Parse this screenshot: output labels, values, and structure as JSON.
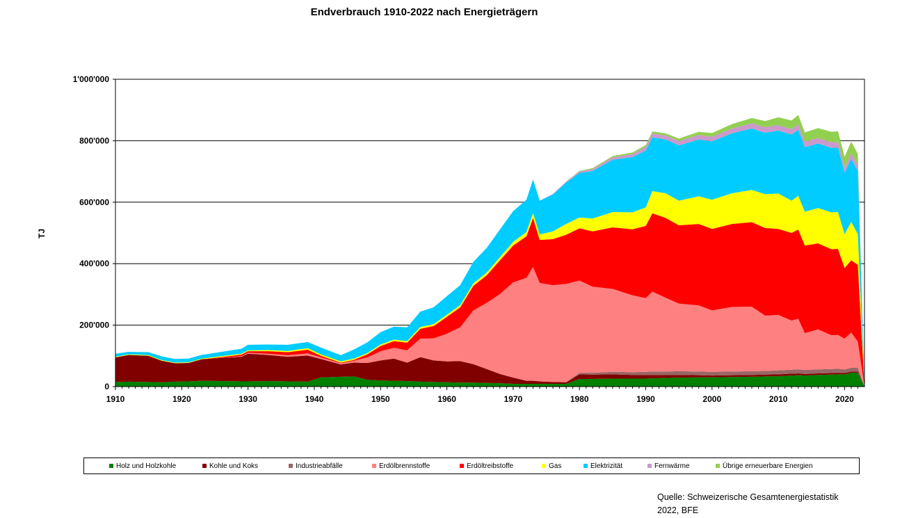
{
  "chart_data": {
    "type": "area",
    "stacked": true,
    "title": "Endverbrauch 1910-2022 nach Energieträgern",
    "ylabel": "TJ",
    "xlabel": "",
    "xlim": [
      1910,
      2023
    ],
    "ylim": [
      0,
      1000000
    ],
    "x_ticks": [
      1910,
      1920,
      1930,
      1940,
      1950,
      1960,
      1970,
      1980,
      1990,
      2000,
      2010,
      2020
    ],
    "y_ticks": [
      0,
      200000,
      400000,
      600000,
      800000,
      1000000
    ],
    "y_tick_labels": [
      "0",
      "200'000",
      "400'000",
      "600'000",
      "800'000",
      "1'000'000"
    ],
    "grid": "horizontal",
    "legend_position": "bottom",
    "x": [
      1910,
      1912,
      1915,
      1917,
      1919,
      1921,
      1923,
      1926,
      1929,
      1930,
      1933,
      1936,
      1939,
      1941,
      1944,
      1946,
      1948,
      1950,
      1952,
      1954,
      1956,
      1958,
      1960,
      1962,
      1964,
      1966,
      1968,
      1970,
      1972,
      1973,
      1974,
      1976,
      1978,
      1980,
      1982,
      1985,
      1988,
      1990,
      1991,
      1993,
      1995,
      1998,
      2000,
      2003,
      2006,
      2008,
      2010,
      2012,
      2013,
      2014,
      2016,
      2018,
      2019,
      2020,
      2021,
      2022
    ],
    "series": [
      {
        "name": "Holz  und  Holzkohle",
        "color": "#008000",
        "values": [
          15000,
          16000,
          15000,
          14000,
          16000,
          17000,
          19000,
          18000,
          17000,
          17000,
          18000,
          17000,
          16000,
          30000,
          32000,
          33000,
          22000,
          20000,
          19000,
          18000,
          16000,
          15000,
          14000,
          13000,
          13000,
          12000,
          11000,
          9000,
          9000,
          9000,
          9000,
          9000,
          9000,
          25000,
          25000,
          26000,
          26000,
          26000,
          27000,
          28000,
          29000,
          30000,
          30000,
          31000,
          32000,
          33000,
          34000,
          36000,
          37000,
          36000,
          38000,
          39000,
          40000,
          40000,
          45000,
          45000
        ]
      },
      {
        "name": "Kohle  und Koks",
        "color": "#800000",
        "values": [
          80000,
          87000,
          85000,
          70000,
          60000,
          60000,
          70000,
          75000,
          80000,
          90000,
          85000,
          80000,
          85000,
          60000,
          40000,
          45000,
          55000,
          65000,
          72000,
          60000,
          80000,
          70000,
          68000,
          70000,
          60000,
          45000,
          30000,
          20000,
          10000,
          10000,
          8000,
          6000,
          5000,
          15000,
          14000,
          14000,
          12000,
          12000,
          11000,
          10000,
          9000,
          7000,
          6000,
          6000,
          6000,
          6000,
          6000,
          6000,
          6000,
          5000,
          5000,
          5000,
          5000,
          4000,
          4000,
          4000
        ]
      },
      {
        "name": "Industrieabfälle",
        "color": "#996666",
        "values": [
          0,
          0,
          0,
          0,
          0,
          0,
          0,
          0,
          0,
          0,
          0,
          0,
          0,
          0,
          0,
          0,
          0,
          0,
          0,
          0,
          0,
          0,
          0,
          0,
          0,
          0,
          0,
          0,
          0,
          0,
          0,
          0,
          0,
          5000,
          6000,
          8000,
          9000,
          10000,
          11000,
          11000,
          12000,
          12000,
          12000,
          12000,
          12000,
          12000,
          13000,
          13000,
          13000,
          13000,
          13000,
          13000,
          13000,
          12000,
          12000,
          12000
        ]
      },
      {
        "name": "Erdölbrennstoffe",
        "color": "#ff8080",
        "values": [
          0,
          0,
          0,
          0,
          0,
          0,
          0,
          0,
          2000,
          3000,
          4000,
          5000,
          7000,
          5000,
          4000,
          6000,
          18000,
          30000,
          35000,
          40000,
          60000,
          72000,
          90000,
          110000,
          175000,
          215000,
          260000,
          310000,
          335000,
          370000,
          320000,
          315000,
          320000,
          300000,
          280000,
          270000,
          250000,
          240000,
          260000,
          240000,
          220000,
          215000,
          200000,
          210000,
          210000,
          180000,
          180000,
          160000,
          165000,
          120000,
          130000,
          110000,
          110000,
          100000,
          115000,
          85000
        ]
      },
      {
        "name": "Erdöltreibstoffe",
        "color": "#ff0000",
        "values": [
          0,
          0,
          0,
          0,
          0,
          0,
          0,
          3000,
          5000,
          5000,
          8000,
          10000,
          12000,
          5000,
          2000,
          3000,
          10000,
          17000,
          22000,
          25000,
          32000,
          40000,
          55000,
          65000,
          80000,
          90000,
          110000,
          120000,
          135000,
          160000,
          140000,
          150000,
          160000,
          170000,
          180000,
          200000,
          215000,
          235000,
          255000,
          260000,
          255000,
          265000,
          265000,
          270000,
          275000,
          285000,
          280000,
          285000,
          290000,
          285000,
          280000,
          280000,
          280000,
          230000,
          235000,
          250000
        ]
      },
      {
        "name": "Gas",
        "color": "#ffff00",
        "values": [
          2000,
          2000,
          2000,
          2000,
          2000,
          2000,
          2000,
          3000,
          3000,
          3000,
          4000,
          4000,
          5000,
          5000,
          4000,
          4000,
          4000,
          5000,
          5000,
          5000,
          6000,
          6000,
          7000,
          7000,
          8000,
          9000,
          10000,
          12000,
          14000,
          15000,
          18000,
          25000,
          35000,
          35000,
          42000,
          50000,
          55000,
          60000,
          72000,
          80000,
          80000,
          90000,
          95000,
          100000,
          105000,
          110000,
          115000,
          105000,
          110000,
          110000,
          115000,
          120000,
          120000,
          110000,
          125000,
          100000
        ]
      },
      {
        "name": "Elektrizität",
        "color": "#00ccff",
        "values": [
          10000,
          8000,
          10000,
          12000,
          12000,
          12000,
          12000,
          14000,
          16000,
          18000,
          18000,
          20000,
          20000,
          22000,
          20000,
          30000,
          35000,
          40000,
          42000,
          45000,
          50000,
          55000,
          60000,
          65000,
          70000,
          80000,
          90000,
          100000,
          105000,
          110000,
          110000,
          120000,
          135000,
          145000,
          155000,
          170000,
          180000,
          185000,
          175000,
          175000,
          180000,
          185000,
          190000,
          195000,
          200000,
          200000,
          205000,
          215000,
          215000,
          210000,
          210000,
          210000,
          210000,
          200000,
          205000,
          205000
        ]
      },
      {
        "name": "Fernwärme",
        "color": "#cc99cc",
        "values": [
          0,
          0,
          0,
          0,
          0,
          0,
          0,
          0,
          0,
          0,
          0,
          0,
          0,
          0,
          0,
          0,
          0,
          0,
          0,
          0,
          0,
          0,
          0,
          0,
          0,
          0,
          0,
          0,
          0,
          0,
          0,
          2000,
          3000,
          5000,
          6000,
          8000,
          10000,
          12000,
          13000,
          13000,
          14000,
          15000,
          15000,
          16000,
          17000,
          18000,
          18000,
          18000,
          18000,
          18000,
          18000,
          18000,
          18000,
          17000,
          19000,
          18000
        ]
      },
      {
        "name": "Übrige erneuerbare Energien",
        "color": "#92d050",
        "values": [
          0,
          0,
          0,
          0,
          0,
          0,
          0,
          0,
          0,
          0,
          0,
          0,
          0,
          0,
          0,
          0,
          0,
          0,
          0,
          0,
          0,
          0,
          0,
          0,
          0,
          0,
          0,
          0,
          0,
          0,
          0,
          0,
          0,
          2000,
          3000,
          4000,
          5000,
          6000,
          6000,
          7000,
          8000,
          10000,
          12000,
          14000,
          17000,
          20000,
          25000,
          28000,
          30000,
          30000,
          32000,
          34000,
          35000,
          35000,
          37000,
          38000
        ]
      }
    ]
  },
  "source_line1": "Quelle: Schweizerische Gesamtenergiestatistik",
  "source_line2": "2022, BFE"
}
